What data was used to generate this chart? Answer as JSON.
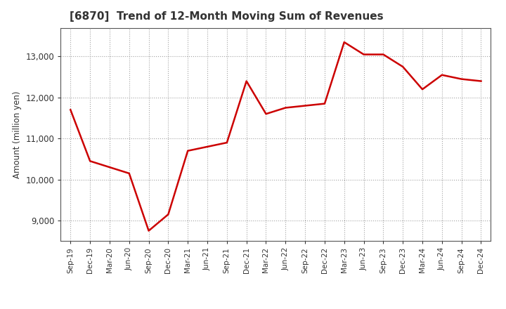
{
  "title": "[6870]  Trend of 12-Month Moving Sum of Revenues",
  "ylabel": "Amount (million yen)",
  "line_color": "#cc0000",
  "line_width": 1.8,
  "background_color": "#ffffff",
  "grid_color": "#999999",
  "x_labels": [
    "Sep-19",
    "Dec-19",
    "Mar-20",
    "Jun-20",
    "Sep-20",
    "Dec-20",
    "Mar-21",
    "Jun-21",
    "Sep-21",
    "Dec-21",
    "Mar-22",
    "Jun-22",
    "Sep-22",
    "Dec-22",
    "Mar-23",
    "Jun-23",
    "Sep-23",
    "Dec-23",
    "Mar-24",
    "Jun-24",
    "Sep-24",
    "Dec-24"
  ],
  "values": [
    11700,
    10450,
    10300,
    10150,
    8750,
    9150,
    10700,
    10800,
    10900,
    12400,
    11600,
    11750,
    11800,
    11850,
    13350,
    13050,
    13050,
    12750,
    12200,
    12550,
    12450,
    12400
  ],
  "ylim": [
    8500,
    13700
  ],
  "yticks": [
    9000,
    10000,
    11000,
    12000,
    13000
  ],
  "title_color": "#333333",
  "tick_color": "#333333",
  "spine_color": "#555555"
}
